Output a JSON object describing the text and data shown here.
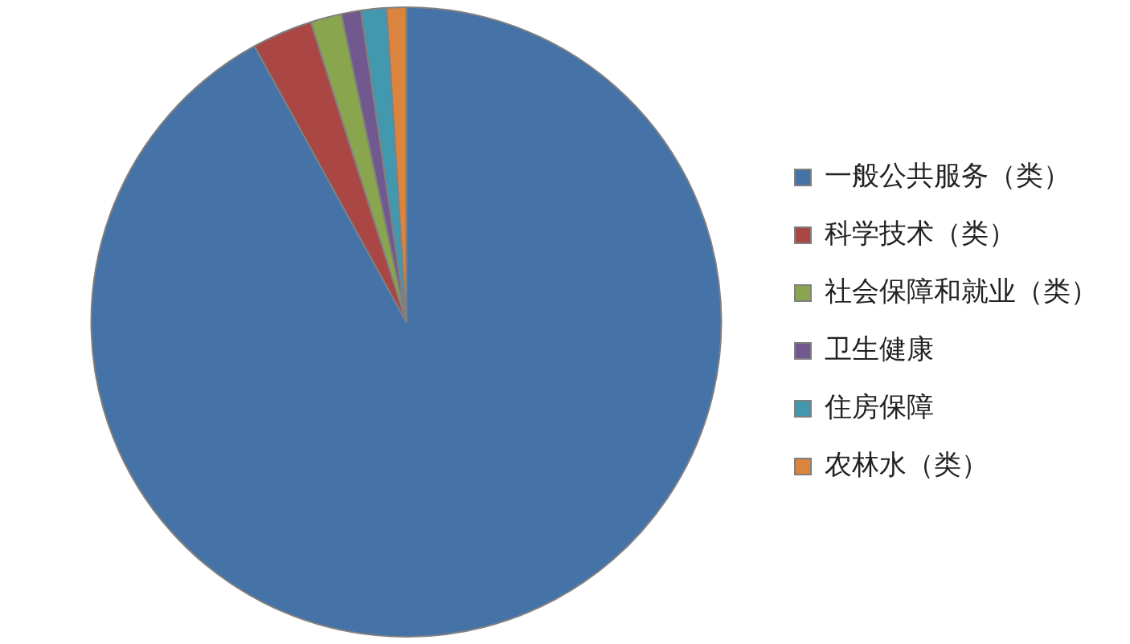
{
  "chart_data": {
    "type": "pie",
    "categories": [
      "一般公共服务（类）",
      "科学技术（类）",
      "社会保障和就业（类）",
      "卫生健康",
      "住房保障",
      "农林水（类）"
    ],
    "values": [
      92.0,
      3.1,
      1.6,
      1.0,
      1.3,
      1.0
    ],
    "colors": [
      "#4572a7",
      "#aa4643",
      "#89a54e",
      "#71588f",
      "#4198af",
      "#db843d"
    ],
    "legend": "right"
  }
}
